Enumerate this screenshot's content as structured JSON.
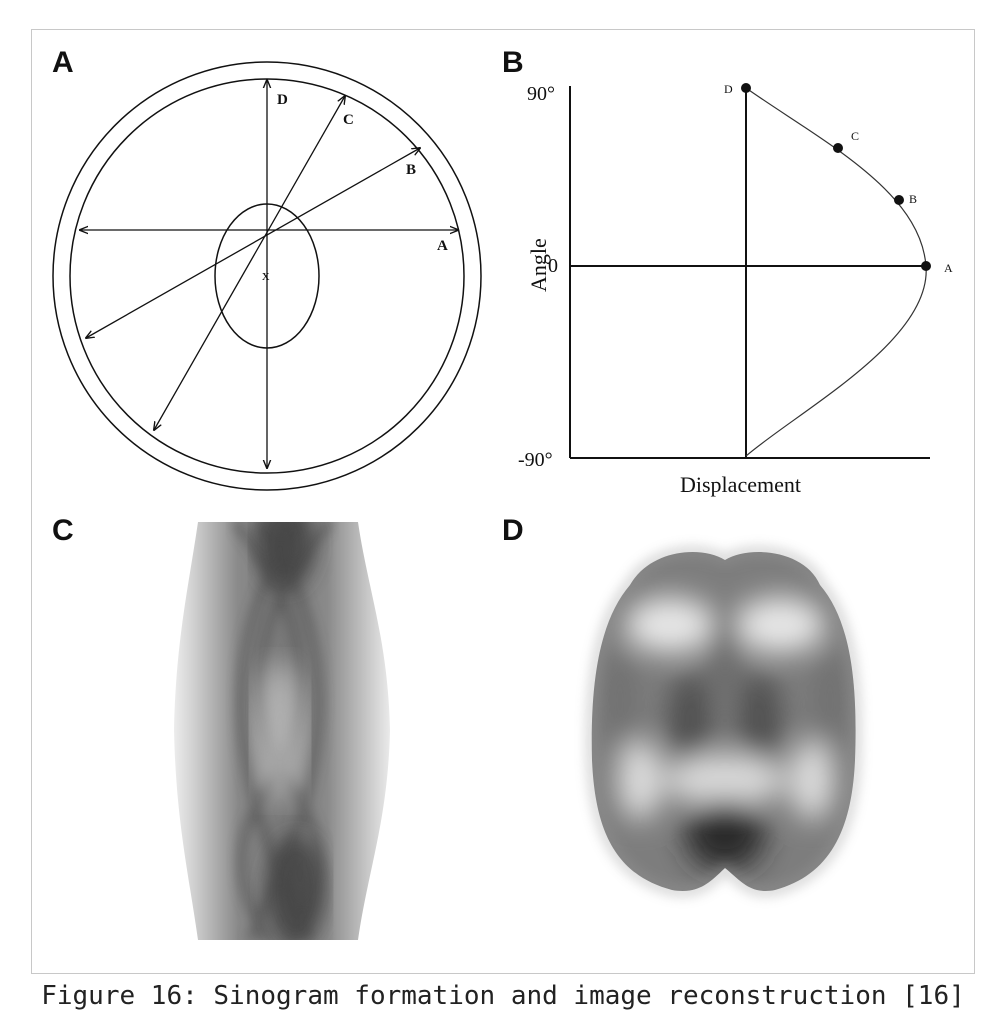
{
  "panels": {
    "a": {
      "letter": "A",
      "labels": {
        "a": "A",
        "b": "B",
        "c": "C",
        "d": "D",
        "x": "x"
      }
    },
    "b": {
      "letter": "B",
      "ylabel": "Angle",
      "xlabel": "Displacement",
      "ticks": {
        "top": "90°",
        "zero": "0",
        "bottom": "-90°"
      },
      "points": {
        "a": "A",
        "b": "B",
        "c": "C",
        "d": "D"
      }
    },
    "c": {
      "letter": "C"
    },
    "d": {
      "letter": "D"
    }
  },
  "caption": "Figure 16: Sinogram formation and image reconstruction [16]"
}
